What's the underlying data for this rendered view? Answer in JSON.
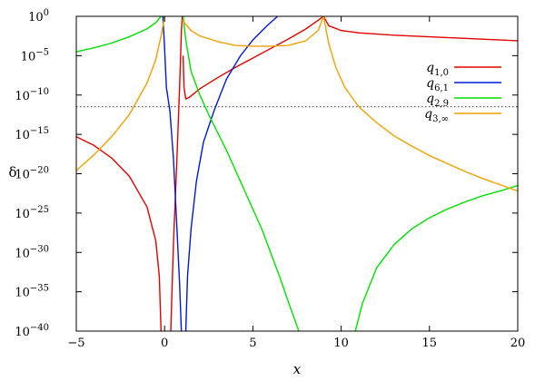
{
  "chart_data": {
    "type": "line",
    "xlabel": "x",
    "ylabel": "δ",
    "xlim": [
      -5,
      20
    ],
    "ylim_log10": [
      -40,
      0
    ],
    "x_ticks": [
      {
        "value": -5,
        "label": "−5"
      },
      {
        "value": 0,
        "label": "0"
      },
      {
        "value": 5,
        "label": "5"
      },
      {
        "value": 10,
        "label": "10"
      },
      {
        "value": 15,
        "label": "15"
      },
      {
        "value": 20,
        "label": "20"
      }
    ],
    "y_ticks": [
      {
        "exp": 0,
        "mant": "10",
        "sup": "0"
      },
      {
        "exp": -5,
        "mant": "10",
        "sup": "−5"
      },
      {
        "exp": -10,
        "mant": "10",
        "sup": "−10"
      },
      {
        "exp": -15,
        "mant": "10",
        "sup": "−15"
      },
      {
        "exp": -20,
        "mant": "10",
        "sup": "−20"
      },
      {
        "exp": -25,
        "mant": "10",
        "sup": "−25"
      },
      {
        "exp": -30,
        "mant": "10",
        "sup": "−30"
      },
      {
        "exp": -35,
        "mant": "10",
        "sup": "−35"
      },
      {
        "exp": -40,
        "mant": "10",
        "sup": "−40"
      }
    ],
    "reference_line": {
      "log10_y": -11.5,
      "style": "dotted"
    },
    "legend_position": "top-right",
    "series": [
      {
        "name": "q",
        "sub": "1,0",
        "color": "#e00000",
        "segments": [
          [
            [
              -5,
              -15.3
            ],
            [
              -4,
              -16.4
            ],
            [
              -3,
              -18.0
            ],
            [
              -2,
              -20.3
            ],
            [
              -1,
              -24.2
            ],
            [
              -0.5,
              -28.5
            ],
            [
              -0.3,
              -33.0
            ],
            [
              -0.2,
              -40.0
            ]
          ],
          [
            [
              0.35,
              -40.0
            ],
            [
              0.5,
              -29.0
            ],
            [
              0.7,
              -18.0
            ],
            [
              0.85,
              -9.0
            ],
            [
              0.95,
              -2.0
            ],
            [
              1.0,
              0.0
            ]
          ],
          [
            [
              1.05,
              -5.0
            ],
            [
              1.1,
              -9.0
            ],
            [
              1.2,
              -10.5
            ],
            [
              1.4,
              -10.3
            ],
            [
              2,
              -9.2
            ],
            [
              3,
              -7.8
            ],
            [
              4,
              -6.5
            ],
            [
              5,
              -5.3
            ],
            [
              6,
              -4.1
            ],
            [
              7,
              -2.9
            ],
            [
              8,
              -1.6
            ],
            [
              8.7,
              -0.5
            ],
            [
              9.0,
              0.0
            ],
            [
              9.3,
              -1.2
            ],
            [
              10,
              -1.8
            ],
            [
              11,
              -2.1
            ],
            [
              13,
              -2.4
            ],
            [
              15,
              -2.6
            ],
            [
              17,
              -2.8
            ],
            [
              19,
              -3.0
            ],
            [
              20,
              -3.1
            ]
          ]
        ]
      },
      {
        "name": "q",
        "sub": "6,1",
        "color": "#0018d8",
        "segments": [
          [
            [
              -0.1,
              0.0
            ],
            [
              0.0,
              -4.0
            ],
            [
              0.1,
              -9.0
            ],
            [
              0.3,
              -12.0
            ],
            [
              0.5,
              -18.0
            ],
            [
              0.7,
              -27.0
            ],
            [
              0.85,
              -34.0
            ],
            [
              0.95,
              -40.0
            ]
          ],
          [
            [
              1.2,
              -40.0
            ],
            [
              1.3,
              -33.0
            ],
            [
              1.5,
              -27.0
            ],
            [
              1.8,
              -21.0
            ],
            [
              2.2,
              -16.0
            ],
            [
              2.8,
              -12.0
            ],
            [
              3.5,
              -8.0
            ],
            [
              4.3,
              -5.0
            ],
            [
              5.0,
              -3.0
            ],
            [
              5.8,
              -1.2
            ],
            [
              6.4,
              0.0
            ]
          ]
        ]
      },
      {
        "name": "q",
        "sub": "2,9",
        "color": "#00e000",
        "segments": [
          [
            [
              -5,
              -4.5
            ],
            [
              -4,
              -4.0
            ],
            [
              -3,
              -3.4
            ],
            [
              -2,
              -2.6
            ],
            [
              -1,
              -1.6
            ],
            [
              -0.5,
              -0.8
            ],
            [
              -0.2,
              0.0
            ]
          ],
          [
            [
              1.05,
              0.0
            ],
            [
              1.2,
              -3.0
            ],
            [
              1.5,
              -7.0
            ],
            [
              2.0,
              -10.0
            ],
            [
              2.5,
              -12.5
            ],
            [
              3.5,
              -17.0
            ],
            [
              4.5,
              -22.0
            ],
            [
              5.5,
              -27.0
            ],
            [
              6.5,
              -33.0
            ],
            [
              7.2,
              -37.5
            ],
            [
              7.6,
              -40.0
            ]
          ],
          [
            [
              10.8,
              -40.0
            ],
            [
              11.2,
              -36.5
            ],
            [
              12,
              -32.0
            ],
            [
              13,
              -29.0
            ],
            [
              14,
              -27.0
            ],
            [
              15,
              -25.6
            ],
            [
              16,
              -24.5
            ],
            [
              17,
              -23.6
            ],
            [
              18,
              -22.8
            ],
            [
              19,
              -22.2
            ],
            [
              20,
              -21.5
            ]
          ]
        ]
      },
      {
        "name": "q",
        "sub": "3,∞",
        "color": "#f0a000",
        "segments": [
          [
            [
              -5,
              -19.6
            ],
            [
              -4,
              -17.6
            ],
            [
              -3,
              -15.3
            ],
            [
              -2,
              -12.5
            ],
            [
              -1,
              -8.5
            ],
            [
              -0.5,
              -5.5
            ],
            [
              -0.2,
              -2.5
            ],
            [
              0.0,
              0.0
            ]
          ],
          [
            [
              1.0,
              -0.5
            ],
            [
              1.5,
              -1.8
            ],
            [
              2,
              -2.5
            ],
            [
              3,
              -3.2
            ],
            [
              4,
              -3.7
            ],
            [
              5,
              -3.8
            ],
            [
              6,
              -3.8
            ],
            [
              7,
              -3.7
            ],
            [
              8,
              -3.1
            ],
            [
              8.7,
              -1.8
            ],
            [
              9.0,
              0.0
            ]
          ],
          [
            [
              9.0,
              0.0
            ],
            [
              9.3,
              -3.5
            ],
            [
              9.7,
              -6.5
            ],
            [
              10.2,
              -9.0
            ],
            [
              11,
              -11.5
            ],
            [
              12,
              -13.5
            ],
            [
              13,
              -15.2
            ],
            [
              14,
              -16.5
            ],
            [
              15,
              -17.7
            ],
            [
              16,
              -18.7
            ],
            [
              17,
              -19.7
            ],
            [
              18,
              -20.6
            ],
            [
              19,
              -21.4
            ],
            [
              20,
              -22.2
            ]
          ]
        ]
      }
    ]
  }
}
